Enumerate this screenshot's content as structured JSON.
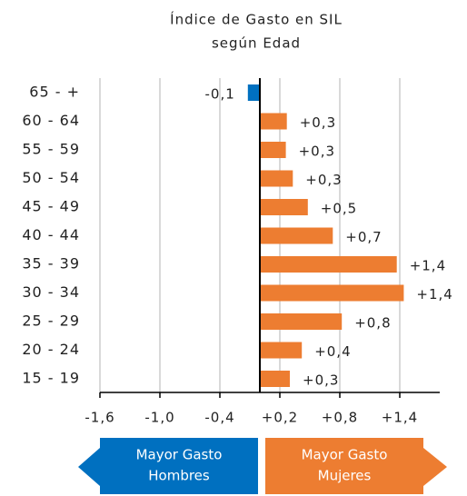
{
  "chart_data": {
    "type": "bar",
    "orientation": "horizontal",
    "title": [
      "Índice de Gasto en SIL",
      "según Edad"
    ],
    "categories": [
      "65 - +",
      "60 - 64",
      "55 - 59",
      "50 - 54",
      "45 - 49",
      "40 - 44",
      "35 - 39",
      "30 - 34",
      "25 - 29",
      "20 - 24",
      "15 - 19"
    ],
    "values": [
      -0.12,
      0.27,
      0.26,
      0.33,
      0.48,
      0.73,
      1.37,
      1.44,
      0.82,
      0.42,
      0.3
    ],
    "value_labels": [
      "-0,1",
      "+0,3",
      "+0,3",
      "+0,3",
      "+0,5",
      "+0,7",
      "+1,4",
      "+1,4",
      "+0,8",
      "+0,4",
      "+0,3"
    ],
    "positive_color": "#ed7d31",
    "negative_color": "#0070c0",
    "xlim": [
      -1.6,
      1.8
    ],
    "xticks": [
      {
        "value": -1.6,
        "label": "-1,6"
      },
      {
        "value": -1.0,
        "label": "-1,0"
      },
      {
        "value": -0.4,
        "label": "-0,4"
      },
      {
        "value": 0.2,
        "label": "+0,2"
      },
      {
        "value": 0.8,
        "label": "+0,8"
      },
      {
        "value": 1.4,
        "label": "+1,4"
      }
    ],
    "grid": true,
    "left_label": [
      "Mayor Gasto",
      "Hombres"
    ],
    "right_label": [
      "Mayor Gasto",
      "Mujeres"
    ]
  }
}
